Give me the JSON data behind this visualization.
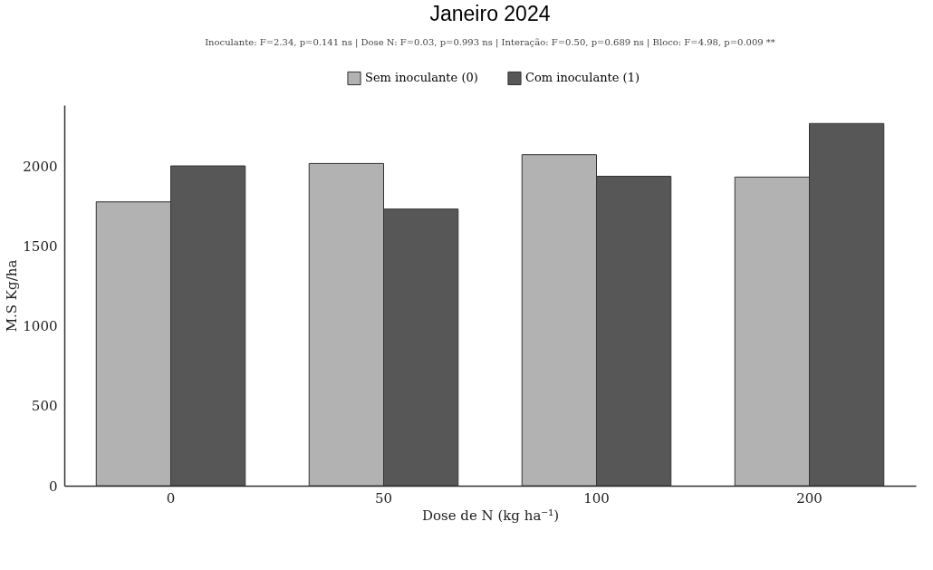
{
  "chart_data": {
    "type": "bar",
    "title": "Janeiro 2024",
    "subtitle": "Inoculante: F=2.34, p=0.141 ns | Dose N: F=0.03, p=0.993 ns | Interação: F=0.50, p=0.689 ns | Bloco: F=4.98, p=0.009 **",
    "xlabel": "Dose de N (kg ha⁻¹)",
    "ylabel": "M.S Kg/ha",
    "categories": [
      "0",
      "50",
      "100",
      "200"
    ],
    "series": [
      {
        "name": "Sem inoculante (0)",
        "color": "#b2b2b2",
        "values": [
          1775,
          2015,
          2070,
          1930
        ]
      },
      {
        "name": "Com inoculante (1)",
        "color": "#575757",
        "values": [
          2000,
          1730,
          1935,
          2265
        ]
      }
    ],
    "ylim": [
      0,
      2380
    ],
    "yticks": [
      0,
      500,
      1000,
      1500,
      2000
    ],
    "grid": false,
    "legend": "top"
  }
}
